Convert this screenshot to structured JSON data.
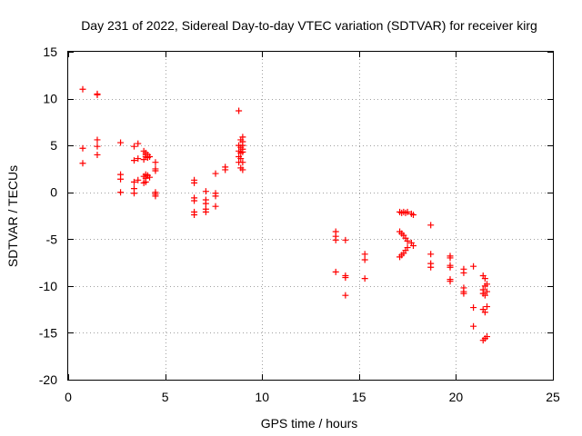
{
  "chart_data": {
    "type": "scatter",
    "title": "Day 231 of 2022, Sidereal Day-to-day VTEC variation (SDTVAR) for receiver kirg",
    "xlabel": "GPS time / hours",
    "ylabel": "SDTVAR / TECUs",
    "xlim": [
      0,
      25
    ],
    "ylim": [
      -20,
      15
    ],
    "xticks": [
      0,
      5,
      10,
      15,
      20,
      25
    ],
    "yticks": [
      -20,
      -15,
      -10,
      -5,
      0,
      5,
      10,
      15
    ],
    "grid": true,
    "marker": "plus",
    "color": "#ff0000",
    "series": [
      {
        "name": "SDTVAR",
        "points": [
          [
            0.75,
            11.0
          ],
          [
            0.75,
            4.7
          ],
          [
            0.75,
            3.1
          ],
          [
            1.5,
            10.5
          ],
          [
            1.5,
            10.4
          ],
          [
            1.5,
            5.6
          ],
          [
            1.5,
            4.9
          ],
          [
            1.5,
            4.0
          ],
          [
            2.7,
            5.3
          ],
          [
            2.7,
            1.9
          ],
          [
            2.7,
            1.4
          ],
          [
            2.7,
            0.0
          ],
          [
            3.4,
            4.9
          ],
          [
            3.4,
            3.4
          ],
          [
            3.4,
            1.1
          ],
          [
            3.4,
            0.4
          ],
          [
            3.4,
            -0.1
          ],
          [
            3.6,
            5.2
          ],
          [
            3.6,
            3.6
          ],
          [
            3.6,
            1.3
          ],
          [
            3.9,
            4.4
          ],
          [
            3.9,
            3.5
          ],
          [
            3.9,
            1.7
          ],
          [
            3.9,
            1.0
          ],
          [
            4.0,
            4.2
          ],
          [
            4.0,
            4.0
          ],
          [
            4.0,
            3.8
          ],
          [
            4.0,
            1.9
          ],
          [
            4.0,
            1.5
          ],
          [
            4.0,
            1.1
          ],
          [
            4.1,
            4.0
          ],
          [
            4.1,
            3.7
          ],
          [
            4.1,
            1.8
          ],
          [
            4.2,
            3.8
          ],
          [
            4.2,
            1.6
          ],
          [
            4.5,
            3.2
          ],
          [
            4.5,
            2.5
          ],
          [
            4.5,
            2.3
          ],
          [
            4.5,
            0.0
          ],
          [
            4.5,
            -0.2
          ],
          [
            4.5,
            -0.4
          ],
          [
            6.5,
            1.3
          ],
          [
            6.5,
            1.0
          ],
          [
            6.5,
            -0.6
          ],
          [
            6.5,
            -0.9
          ],
          [
            6.5,
            -2.1
          ],
          [
            6.5,
            -2.4
          ],
          [
            7.1,
            0.1
          ],
          [
            7.1,
            -0.8
          ],
          [
            7.1,
            -1.2
          ],
          [
            7.1,
            -1.8
          ],
          [
            7.1,
            -2.1
          ],
          [
            7.6,
            2.0
          ],
          [
            7.6,
            -0.1
          ],
          [
            7.6,
            -0.4
          ],
          [
            7.6,
            -1.5
          ],
          [
            8.1,
            2.7
          ],
          [
            8.1,
            2.4
          ],
          [
            8.8,
            8.7
          ],
          [
            8.8,
            5.0
          ],
          [
            8.8,
            4.4
          ],
          [
            8.8,
            3.8
          ],
          [
            8.8,
            3.2
          ],
          [
            8.9,
            5.6
          ],
          [
            8.9,
            4.8
          ],
          [
            8.9,
            4.2
          ],
          [
            8.9,
            3.6
          ],
          [
            8.9,
            2.6
          ],
          [
            9.0,
            5.9
          ],
          [
            9.0,
            5.4
          ],
          [
            9.0,
            5.0
          ],
          [
            9.0,
            4.6
          ],
          [
            9.0,
            4.3
          ],
          [
            9.0,
            3.2
          ],
          [
            9.0,
            2.4
          ],
          [
            13.8,
            -4.2
          ],
          [
            13.8,
            -4.7
          ],
          [
            13.8,
            -5.1
          ],
          [
            13.8,
            -8.5
          ],
          [
            14.3,
            -5.1
          ],
          [
            14.3,
            -8.9
          ],
          [
            14.3,
            -9.1
          ],
          [
            14.3,
            -11.0
          ],
          [
            15.3,
            -6.6
          ],
          [
            15.3,
            -7.2
          ],
          [
            15.3,
            -9.2
          ],
          [
            17.1,
            -6.9
          ],
          [
            17.1,
            -4.2
          ],
          [
            17.1,
            -2.1
          ],
          [
            17.2,
            -6.7
          ],
          [
            17.2,
            -4.4
          ],
          [
            17.2,
            -2.2
          ],
          [
            17.3,
            -6.5
          ],
          [
            17.3,
            -4.6
          ],
          [
            17.3,
            -2.1
          ],
          [
            17.4,
            -6.2
          ],
          [
            17.4,
            -4.9
          ],
          [
            17.4,
            -2.2
          ],
          [
            17.5,
            -5.9
          ],
          [
            17.5,
            -5.2
          ],
          [
            17.5,
            -2.1
          ],
          [
            17.7,
            -2.3
          ],
          [
            17.7,
            -5.4
          ],
          [
            17.8,
            -2.4
          ],
          [
            17.8,
            -5.7
          ],
          [
            18.7,
            -3.5
          ],
          [
            18.7,
            -6.6
          ],
          [
            18.7,
            -7.6
          ],
          [
            18.7,
            -8.0
          ],
          [
            19.7,
            -6.8
          ],
          [
            19.7,
            -7.0
          ],
          [
            19.7,
            -7.8
          ],
          [
            19.7,
            -8.0
          ],
          [
            19.7,
            -9.3
          ],
          [
            19.7,
            -9.5
          ],
          [
            20.4,
            -8.2
          ],
          [
            20.4,
            -8.6
          ],
          [
            20.4,
            -10.2
          ],
          [
            20.4,
            -10.6
          ],
          [
            20.4,
            -10.8
          ],
          [
            20.9,
            -7.9
          ],
          [
            20.9,
            -12.3
          ],
          [
            20.9,
            -14.3
          ],
          [
            21.4,
            -8.9
          ],
          [
            21.4,
            -10.4
          ],
          [
            21.4,
            -10.8
          ],
          [
            21.4,
            -12.5
          ],
          [
            21.4,
            -15.8
          ],
          [
            21.5,
            -9.2
          ],
          [
            21.5,
            -10.0
          ],
          [
            21.5,
            -11.0
          ],
          [
            21.5,
            -12.8
          ],
          [
            21.5,
            -15.6
          ],
          [
            21.6,
            -9.8
          ],
          [
            21.6,
            -10.6
          ],
          [
            21.6,
            -12.2
          ],
          [
            21.6,
            -15.4
          ]
        ]
      }
    ]
  }
}
